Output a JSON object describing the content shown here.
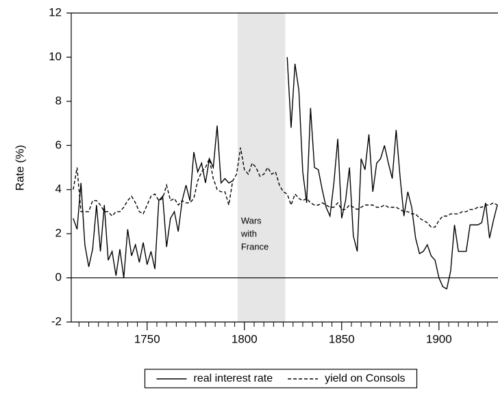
{
  "chart_data": {
    "type": "line",
    "y_label": "Rate (%)",
    "x": [
      1712,
      1714,
      1716,
      1718,
      1720,
      1722,
      1724,
      1726,
      1728,
      1730,
      1732,
      1734,
      1736,
      1738,
      1740,
      1742,
      1744,
      1746,
      1748,
      1750,
      1752,
      1754,
      1756,
      1758,
      1760,
      1762,
      1764,
      1766,
      1768,
      1770,
      1772,
      1774,
      1776,
      1778,
      1780,
      1782,
      1784,
      1786,
      1788,
      1790,
      1792,
      1794,
      1796,
      1798,
      1800,
      1802,
      1804,
      1806,
      1808,
      1810,
      1812,
      1814,
      1816,
      1818,
      1820,
      1822,
      1824,
      1826,
      1828,
      1830,
      1832,
      1834,
      1836,
      1838,
      1840,
      1842,
      1844,
      1846,
      1848,
      1850,
      1852,
      1854,
      1856,
      1858,
      1860,
      1862,
      1864,
      1866,
      1868,
      1870,
      1872,
      1874,
      1876,
      1878,
      1880,
      1882,
      1884,
      1886,
      1888,
      1890,
      1892,
      1894,
      1896,
      1898,
      1900,
      1902,
      1904,
      1906,
      1908,
      1910,
      1912,
      1914,
      1916,
      1918,
      1920,
      1922,
      1924,
      1926,
      1928,
      1930
    ],
    "series": [
      {
        "name": "real interest rate",
        "color": "#000000",
        "line_style": "solid",
        "values": [
          2.7,
          2.2,
          4.3,
          1.5,
          0.5,
          1.3,
          3.3,
          1.2,
          3.3,
          0.8,
          1.2,
          0.1,
          1.3,
          0.0,
          2.2,
          1.0,
          1.5,
          0.7,
          1.6,
          0.6,
          1.2,
          0.4,
          3.5,
          3.7,
          1.4,
          2.7,
          3.0,
          2.1,
          3.5,
          4.2,
          3.5,
          5.7,
          4.8,
          5.2,
          4.3,
          5.4,
          5.0,
          6.9,
          4.3,
          4.5,
          4.3,
          4.4,
          null,
          null,
          null,
          null,
          null,
          null,
          null,
          null,
          null,
          null,
          null,
          null,
          null,
          10.0,
          6.8,
          9.7,
          8.5,
          4.8,
          3.4,
          7.7,
          5.0,
          4.9,
          4.0,
          3.2,
          2.8,
          4.3,
          6.3,
          2.7,
          3.5,
          5.0,
          1.9,
          1.2,
          5.4,
          4.9,
          6.5,
          3.9,
          5.2,
          5.4,
          6.0,
          5.2,
          4.5,
          6.7,
          4.6,
          2.8,
          3.9,
          3.2,
          1.8,
          1.1,
          1.2,
          1.5,
          1.0,
          0.8,
          0.0,
          -0.4,
          -0.5,
          0.3,
          2.4,
          1.2,
          1.2,
          1.2,
          2.4,
          2.4,
          2.4,
          2.5,
          3.4,
          1.8,
          2.6,
          3.3
        ]
      },
      {
        "name": "yield on Consols",
        "color": "#000000",
        "line_style": "dashed",
        "values": [
          4.0,
          5.0,
          3.0,
          3.0,
          3.0,
          3.5,
          3.5,
          3.3,
          3.0,
          3.0,
          2.8,
          3.0,
          3.0,
          3.2,
          3.5,
          3.7,
          3.4,
          3.0,
          2.9,
          3.3,
          3.7,
          3.8,
          3.5,
          3.6,
          4.2,
          3.5,
          3.6,
          3.3,
          3.5,
          3.4,
          3.4,
          3.6,
          4.4,
          4.8,
          5.0,
          5.4,
          4.5,
          4.0,
          3.9,
          3.9,
          3.3,
          4.4,
          4.7,
          5.9,
          4.9,
          4.7,
          5.2,
          5.0,
          4.6,
          4.7,
          5.0,
          4.7,
          4.8,
          4.2,
          3.9,
          3.8,
          3.3,
          3.8,
          3.6,
          3.5,
          3.6,
          3.4,
          3.3,
          3.3,
          3.4,
          3.3,
          3.2,
          3.2,
          3.4,
          3.1,
          3.1,
          3.3,
          3.2,
          3.1,
          3.2,
          3.3,
          3.3,
          3.3,
          3.2,
          3.2,
          3.3,
          3.2,
          3.2,
          3.2,
          3.1,
          3.0,
          3.0,
          2.9,
          2.9,
          2.7,
          2.6,
          2.5,
          2.3,
          2.3,
          2.6,
          2.8,
          2.8,
          2.9,
          2.9,
          2.9,
          3.0,
          3.0,
          3.1,
          3.1,
          3.2,
          3.2,
          3.3,
          3.3,
          3.4,
          3.3
        ]
      }
    ],
    "xlim": [
      1711,
      1930
    ],
    "xticks": [
      1750,
      1800,
      1850,
      1900
    ],
    "xminorticks": [
      1715,
      1720,
      1725,
      1730,
      1735,
      1740,
      1745,
      1755,
      1760,
      1765,
      1770,
      1775,
      1780,
      1785,
      1790,
      1795,
      1805,
      1810,
      1815,
      1820,
      1825,
      1830,
      1835,
      1840,
      1845,
      1855,
      1860,
      1865,
      1870,
      1875,
      1880,
      1885,
      1890,
      1895,
      1905,
      1910,
      1915,
      1920,
      1925
    ],
    "ylim": [
      -2,
      12
    ],
    "yticks": [
      -2,
      0,
      2,
      4,
      6,
      8,
      10,
      12
    ],
    "reference_line": 0,
    "shaded_region": {
      "x": [
        1796.5,
        1821
      ],
      "color": "#e6e6e6",
      "label": [
        "Wars",
        "with",
        "France"
      ]
    },
    "legend": "bottom"
  }
}
